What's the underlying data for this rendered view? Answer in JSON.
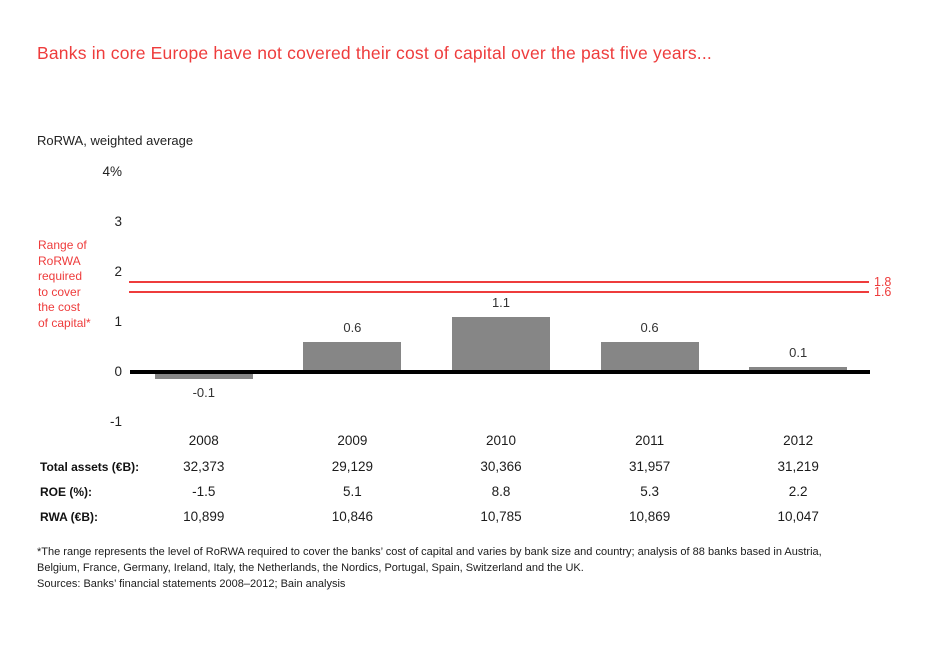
{
  "header": {
    "title": "Banks in core Europe have not covered their cost of capital over the past five years..."
  },
  "chart_data": {
    "type": "bar",
    "unit_label": "RoRWA, weighted average",
    "categories": [
      "2008",
      "2009",
      "2010",
      "2011",
      "2012"
    ],
    "values": [
      -0.1,
      0.6,
      1.1,
      0.6,
      0.1
    ],
    "value_labels": [
      "-0.1",
      "0.6",
      "1.1",
      "0.6",
      "0.1"
    ],
    "ylim": [
      -1,
      4
    ],
    "yticks": [
      {
        "value": 4,
        "label": "4%"
      },
      {
        "value": 3,
        "label": "3"
      },
      {
        "value": 2,
        "label": "2"
      },
      {
        "value": 1,
        "label": "1"
      },
      {
        "value": 0,
        "label": "0"
      },
      {
        "value": -1,
        "label": "-1"
      }
    ],
    "reference_lines": [
      {
        "value": 1.8,
        "label": "1.8"
      },
      {
        "value": 1.6,
        "label": "1.6"
      }
    ],
    "annotation_lines": [
      "Range of",
      "RoRWA",
      "required",
      "to cover",
      "the cost",
      "of capital*"
    ],
    "bar_color": "#868686",
    "accent_color": "#ee3c3c",
    "grid": false,
    "legend": false
  },
  "table": {
    "rows": [
      {
        "label": "Total assets (€B):",
        "values": [
          "32,373",
          "29,129",
          "30,366",
          "31,957",
          "31,219"
        ]
      },
      {
        "label": "ROE (%):",
        "values": [
          "-1.5",
          "5.1",
          "8.8",
          "5.3",
          "2.2"
        ]
      },
      {
        "label": "RWA (€B):",
        "values": [
          "10,899",
          "10,846",
          "10,785",
          "10,869",
          "10,047"
        ]
      }
    ]
  },
  "footnotes": {
    "lines": [
      "*The range represents the level of RoRWA required to cover the banks’ cost of capital and varies by bank size and country; analysis of 88 banks based in Austria,",
      "Belgium, France, Germany, Ireland, Italy, the Netherlands, the Nordics, Portugal, Spain, Switzerland and the UK.",
      "Sources: Banks’ financial statements 2008–2012; Bain analysis"
    ]
  }
}
